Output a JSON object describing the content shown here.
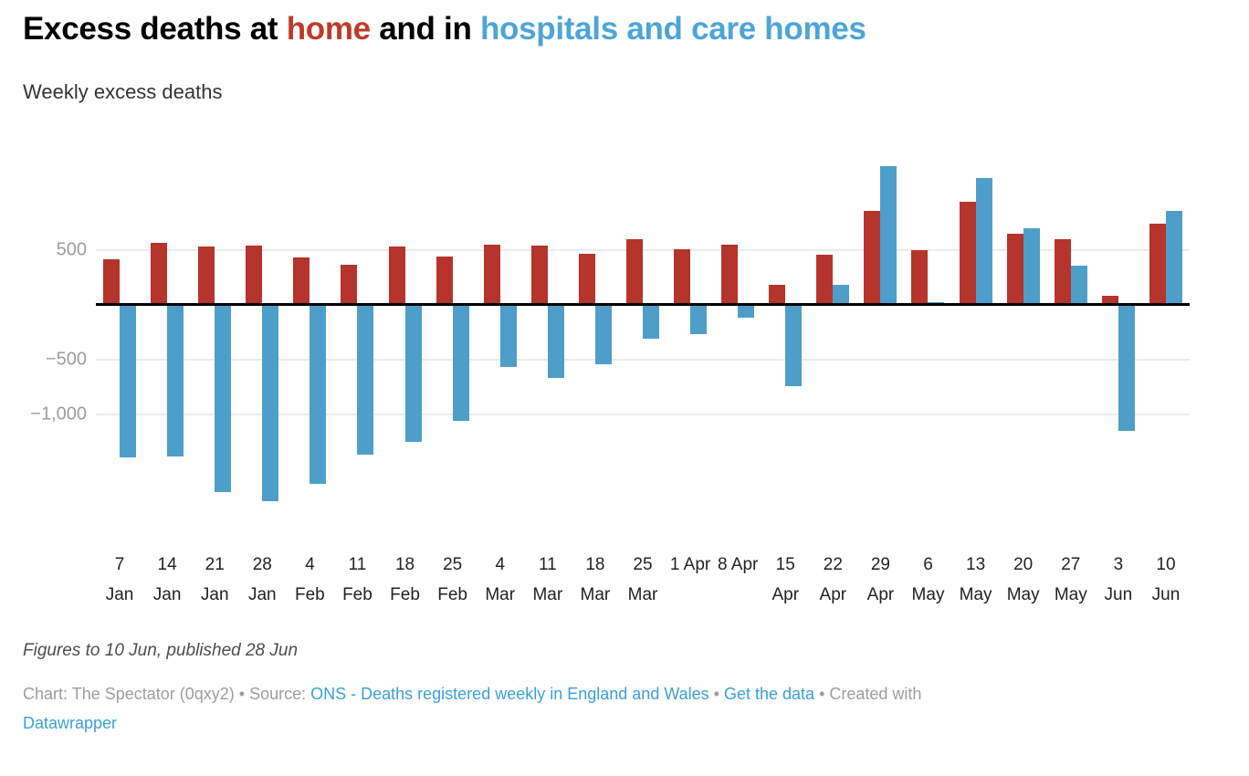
{
  "header": {
    "title_parts": [
      {
        "text": "Excess deaths at ",
        "color": "#000000",
        "link": false
      },
      {
        "text": "home",
        "color": "#bf3b2b",
        "link": false
      },
      {
        "text": " and in ",
        "color": "#000000",
        "link": false
      },
      {
        "text": "hospitals and care homes",
        "color": "#4da5d6",
        "link": false
      }
    ],
    "subtitle": "Weekly excess deaths"
  },
  "chart_data": {
    "type": "bar",
    "title": "Excess deaths at home and in hospitals and care homes",
    "subtitle": "Weekly excess deaths",
    "categories": [
      "7 Jan",
      "14 Jan",
      "21 Jan",
      "28 Jan",
      "4 Feb",
      "11 Feb",
      "18 Feb",
      "25 Feb",
      "4 Mar",
      "11 Mar",
      "18 Mar",
      "25 Mar",
      "1 Apr",
      "8 Apr",
      "15 Apr",
      "22 Apr",
      "29 Apr",
      "6 May",
      "13 May",
      "20 May",
      "27 May",
      "3 Jun",
      "10 Jun"
    ],
    "series": [
      {
        "name": "Home",
        "color": "#b5342b",
        "values": [
          420,
          570,
          530,
          540,
          430,
          370,
          530,
          440,
          550,
          540,
          470,
          600,
          510,
          550,
          180,
          460,
          860,
          500,
          940,
          650,
          600,
          80,
          740
        ]
      },
      {
        "name": "Hospitals and care homes",
        "color": "#4d9fc9",
        "values": [
          -1390,
          -1380,
          -1710,
          -1790,
          -1630,
          -1370,
          -1250,
          -1060,
          -570,
          -670,
          -540,
          -310,
          -270,
          -120,
          -740,
          180,
          1270,
          25,
          1160,
          700,
          360,
          -1150,
          860
        ]
      }
    ],
    "xlabel": "",
    "ylabel": "Weekly excess deaths",
    "ylim": [
      -2050,
      1450
    ],
    "yticks": [
      {
        "value": 500,
        "label": "500"
      },
      {
        "value": -500,
        "label": "−500"
      },
      {
        "value": -1000,
        "label": "−1,000"
      }
    ],
    "grid": true,
    "zero_line": true,
    "legend_position": "none (colors referenced in title)"
  },
  "x_axis": {
    "labels": [
      {
        "day": "7",
        "month": "Jan"
      },
      {
        "day": "14",
        "month": "Jan"
      },
      {
        "day": "21",
        "month": "Jan"
      },
      {
        "day": "28",
        "month": "Jan"
      },
      {
        "day": "4",
        "month": "Feb"
      },
      {
        "day": "11",
        "month": "Feb"
      },
      {
        "day": "18",
        "month": "Feb"
      },
      {
        "day": "25",
        "month": "Feb"
      },
      {
        "day": "4",
        "month": "Mar"
      },
      {
        "day": "11",
        "month": "Mar"
      },
      {
        "day": "18",
        "month": "Mar"
      },
      {
        "day": "25",
        "month": "Mar"
      },
      {
        "day": "1 Apr",
        "month": ""
      },
      {
        "day": "8 Apr",
        "month": ""
      },
      {
        "day": "15",
        "month": "Apr"
      },
      {
        "day": "22",
        "month": "Apr"
      },
      {
        "day": "29",
        "month": "Apr"
      },
      {
        "day": "6",
        "month": "May"
      },
      {
        "day": "13",
        "month": "May"
      },
      {
        "day": "20",
        "month": "May"
      },
      {
        "day": "27",
        "month": "May"
      },
      {
        "day": "3",
        "month": "Jun"
      },
      {
        "day": "10",
        "month": "Jun"
      }
    ]
  },
  "footer": {
    "note": "Figures to 10 Jun, published 28 Jun",
    "attribution_parts": [
      {
        "text": "Chart: The Spectator (0qxy2) • Source: ",
        "link": false,
        "break_before": false
      },
      {
        "text": "ONS - Deaths registered weekly in England and Wales",
        "link": true,
        "break_before": false
      },
      {
        "text": " • ",
        "link": false,
        "break_before": false
      },
      {
        "text": "Get the data",
        "link": true,
        "break_before": false
      },
      {
        "text": " • Created with ",
        "link": false,
        "break_before": false
      },
      {
        "text": "Datawrapper",
        "link": true,
        "break_before": true
      }
    ]
  },
  "colors": {
    "bar_home": "#b5342b",
    "bar_hospitals": "#4d9fc9",
    "grid": "#ebebeb",
    "zero_line": "#000000",
    "y_tick_text": "#9d9d9d",
    "x_tick_text": "#222222",
    "note_text": "#4d4d4d",
    "attribution_text": "#9d9d9d",
    "link": "#3aa0d6"
  }
}
